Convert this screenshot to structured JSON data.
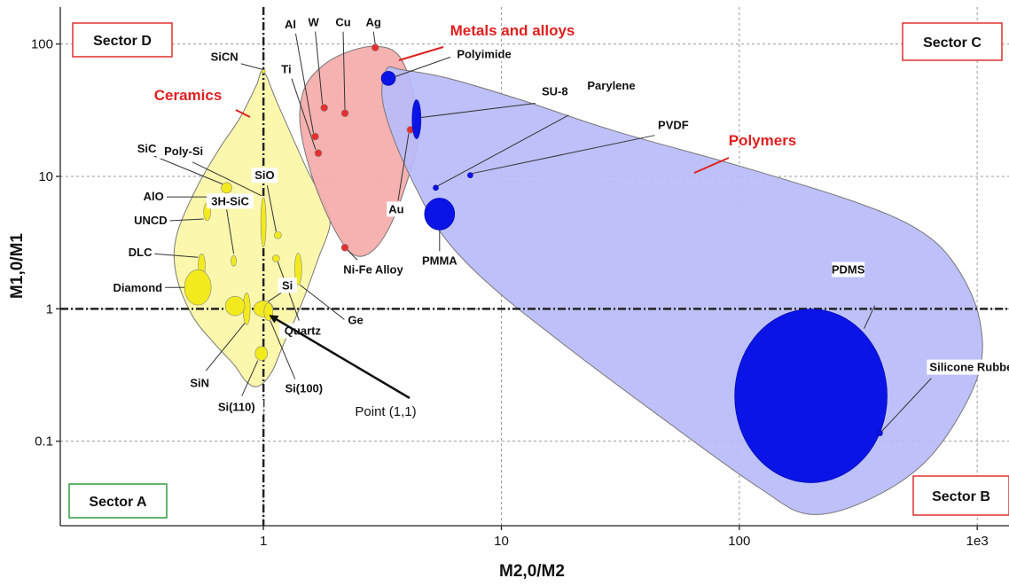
{
  "chart_data": {
    "type": "scatter",
    "title": "",
    "xlabel": "M2,0/M2",
    "ylabel": "M1,0/M1",
    "xscale": "log",
    "yscale": "log",
    "xlim": [
      0.14,
      1360
    ],
    "ylim": [
      0.023,
      190
    ],
    "grid": true,
    "x_ticks": [
      {
        "value": 1,
        "label": "1"
      },
      {
        "value": 10,
        "label": "10"
      },
      {
        "value": 100,
        "label": "100"
      },
      {
        "value": 1000,
        "label": "1e3"
      }
    ],
    "y_ticks": [
      {
        "value": 0.1,
        "label": "0.1"
      },
      {
        "value": 1,
        "label": "1"
      },
      {
        "value": 10,
        "label": "10"
      },
      {
        "value": 100,
        "label": "100"
      }
    ],
    "reference_lines": {
      "x": 1,
      "y": 1
    },
    "groups": [
      {
        "name": "Ceramics",
        "fill": "#fbf6a6",
        "point_color": "#f2ea1c",
        "outline": [
          [
            1.0,
            62
          ],
          [
            0.93,
            48
          ],
          [
            0.8,
            28
          ],
          [
            0.65,
            16
          ],
          [
            0.52,
            8
          ],
          [
            0.43,
            3.5
          ],
          [
            0.43,
            1.8
          ],
          [
            0.5,
            0.9
          ],
          [
            0.62,
            0.55
          ],
          [
            0.75,
            0.38
          ],
          [
            0.85,
            0.28
          ],
          [
            0.95,
            0.26
          ],
          [
            1.08,
            0.33
          ],
          [
            1.22,
            0.55
          ],
          [
            1.45,
            1.1
          ],
          [
            1.7,
            2.4
          ],
          [
            1.9,
            4.2
          ],
          [
            1.82,
            6.0
          ],
          [
            1.5,
            12
          ],
          [
            1.15,
            35
          ]
        ]
      },
      {
        "name": "Metals and alloys",
        "fill": "#f5aaaa",
        "point_color": "#e53030",
        "outline": [
          [
            3.0,
            96
          ],
          [
            2.3,
            88
          ],
          [
            1.8,
            70
          ],
          [
            1.5,
            48
          ],
          [
            1.42,
            28
          ],
          [
            1.5,
            15
          ],
          [
            1.72,
            7
          ],
          [
            2.05,
            3.6
          ],
          [
            2.4,
            2.55
          ],
          [
            2.85,
            2.7
          ],
          [
            3.4,
            4.2
          ],
          [
            4.0,
            9
          ],
          [
            4.5,
            20
          ],
          [
            4.25,
            44
          ],
          [
            3.7,
            82
          ]
        ]
      },
      {
        "name": "Polymers",
        "fill": "#b9bbf8",
        "point_color": "#0a14e6",
        "outline": [
          [
            3.3,
            65
          ],
          [
            3.8,
            64
          ],
          [
            6,
            55
          ],
          [
            12,
            38
          ],
          [
            30,
            22
          ],
          [
            100,
            12
          ],
          [
            300,
            6.5
          ],
          [
            560,
            4.0
          ],
          [
            800,
            2.2
          ],
          [
            1020,
            0.85
          ],
          [
            1000,
            0.3
          ],
          [
            650,
            0.08
          ],
          [
            370,
            0.038
          ],
          [
            200,
            0.028
          ],
          [
            120,
            0.045
          ],
          [
            45,
            0.16
          ],
          [
            18,
            0.55
          ],
          [
            9,
            1.5
          ],
          [
            5.8,
            3.4
          ],
          [
            4.4,
            8
          ],
          [
            3.5,
            20
          ],
          [
            3.15,
            40
          ]
        ]
      }
    ],
    "points": [
      {
        "name": "SiCN",
        "group": "Ceramics",
        "x": 1.0,
        "y": 62,
        "r": 2
      },
      {
        "name": "Poly-Si",
        "group": "Ceramics",
        "x": 1.0,
        "y": 4.5,
        "rx": 3,
        "ry": 28
      },
      {
        "name": "SiC",
        "group": "Ceramics",
        "x": 0.7,
        "y": 8.2,
        "r": 6
      },
      {
        "name": "AlO",
        "group": "Ceramics",
        "x": 0.85,
        "y": 7.0,
        "r": 3
      },
      {
        "name": "UNCD",
        "group": "Ceramics",
        "x": 0.58,
        "y": 5.4,
        "rx": 4,
        "ry": 10
      },
      {
        "name": "3H-SiC",
        "group": "Ceramics",
        "x": 0.75,
        "y": 2.3,
        "rx": 3,
        "ry": 6
      },
      {
        "name": "DLC",
        "group": "Ceramics",
        "x": 0.55,
        "y": 2.1,
        "rx": 4,
        "ry": 14
      },
      {
        "name": "Diamond",
        "group": "Ceramics",
        "x": 0.53,
        "y": 1.45,
        "rx": 15,
        "ry": 20
      },
      {
        "name": "SiO",
        "group": "Ceramics",
        "x": 1.15,
        "y": 3.6,
        "r": 4
      },
      {
        "name": "Si",
        "group": "Ceramics",
        "x": 1.0,
        "y": 1.0,
        "rx": 11,
        "ry": 9
      },
      {
        "name": "Ge",
        "group": "Ceramics",
        "x": 1.4,
        "y": 2.0,
        "rx": 4,
        "ry": 18
      },
      {
        "name": "Quartz",
        "group": "Ceramics",
        "x": 1.13,
        "y": 2.4,
        "r": 4
      },
      {
        "name": "SiN",
        "group": "Ceramics",
        "x": 0.85,
        "y": 1.0,
        "rx": 4,
        "ry": 18
      },
      {
        "name": "Si(110)",
        "group": "Ceramics",
        "x": 0.98,
        "y": 0.46,
        "rx": 7,
        "ry": 8
      },
      {
        "name": "Si(100)",
        "group": "Ceramics",
        "x": 1.05,
        "y": 0.95,
        "rx": 5,
        "ry": 10
      },
      {
        "name": "",
        "group": "Ceramics",
        "x": 0.76,
        "y": 1.05,
        "rx": 11,
        "ry": 11
      },
      {
        "name": "Al",
        "group": "Metals and alloys",
        "x": 1.65,
        "y": 20,
        "r": 4
      },
      {
        "name": "Ti",
        "group": "Metals and alloys",
        "x": 1.7,
        "y": 15,
        "r": 4
      },
      {
        "name": "W",
        "group": "Metals and alloys",
        "x": 1.8,
        "y": 33,
        "r": 4
      },
      {
        "name": "Cu",
        "group": "Metals and alloys",
        "x": 2.2,
        "y": 30,
        "r": 4
      },
      {
        "name": "Ag",
        "group": "Metals and alloys",
        "x": 2.95,
        "y": 94,
        "r": 4
      },
      {
        "name": "Au",
        "group": "Metals and alloys",
        "x": 4.15,
        "y": 22.5,
        "r": 4
      },
      {
        "name": "Ni-Fe Alloy",
        "group": "Metals and alloys",
        "x": 2.2,
        "y": 2.9,
        "r": 4
      },
      {
        "name": "Polyimide",
        "group": "Polymers",
        "x": 3.35,
        "y": 55,
        "r": 8
      },
      {
        "name": "SU-8",
        "group": "Polymers",
        "x": 4.4,
        "y": 27,
        "rx": 5,
        "ry": 22
      },
      {
        "name": "Parylene",
        "group": "Polymers",
        "x": 5.3,
        "y": 8.2,
        "r": 3
      },
      {
        "name": "PVDF",
        "group": "Polymers",
        "x": 7.4,
        "y": 10.2,
        "r": 3
      },
      {
        "name": "PMMA",
        "group": "Polymers",
        "x": 5.5,
        "y": 5.2,
        "rx": 17,
        "ry": 18
      },
      {
        "name": "PDMS",
        "group": "Polymers",
        "x": 200,
        "y": 0.22,
        "rx": 86,
        "ry": 98
      },
      {
        "name": "Silicone Rubber",
        "group": "Polymers",
        "x": 390,
        "y": 0.115,
        "r": 3
      }
    ],
    "annotations": [
      {
        "text": "Sector D",
        "type": "sector",
        "border": "#e03030"
      },
      {
        "text": "Sector C",
        "type": "sector",
        "border": "#e03030"
      },
      {
        "text": "Sector A",
        "type": "sector",
        "border": "#2e9b3e"
      },
      {
        "text": "Sector B",
        "type": "sector",
        "border": "#e03030"
      },
      {
        "text": "Point (1,1)",
        "type": "arrow",
        "target": [
          1,
          1
        ]
      }
    ]
  }
}
